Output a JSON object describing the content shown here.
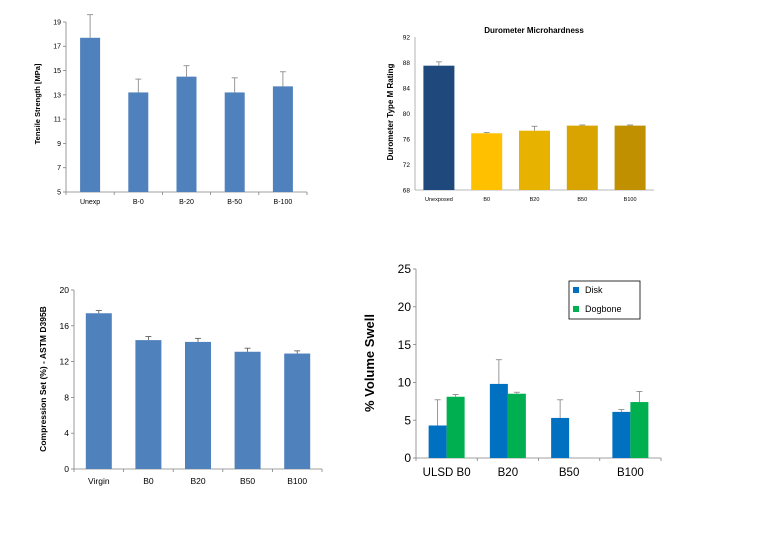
{
  "chart_data": [
    {
      "type": "bar",
      "title": "",
      "ylabel": "Tensile Strength [MPa]",
      "xlabel": "",
      "ylim": [
        5,
        19
      ],
      "yticks": [
        5,
        7,
        9,
        11,
        13,
        15,
        17,
        19
      ],
      "categories": [
        "Unexp",
        "B-0",
        "B-20",
        "B-50",
        "B-100"
      ],
      "values": [
        17.7,
        13.2,
        14.5,
        13.2,
        13.7
      ],
      "errors": [
        1.9,
        1.1,
        0.9,
        1.2,
        1.2
      ],
      "color": "#4f81bd",
      "grid": false,
      "legend": "none"
    },
    {
      "type": "bar",
      "title": "Durometer Microhardness",
      "ylabel": "Durometer Type M Rating",
      "xlabel": "",
      "ylim": [
        68,
        92
      ],
      "yticks": [
        68,
        72,
        76,
        80,
        84,
        88,
        92
      ],
      "categories": [
        "Unexposed",
        "B0",
        "B20",
        "B50",
        "B100"
      ],
      "values": [
        87.5,
        76.9,
        77.3,
        78.1,
        78.1
      ],
      "errors": [
        0.6,
        0.1,
        0.7,
        0.1,
        0.1
      ],
      "colors": [
        "#1f497d",
        "#ffc000",
        "#e8b300",
        "#d9a400",
        "#c09000"
      ],
      "grid": false,
      "legend": "none"
    },
    {
      "type": "bar",
      "title": "",
      "ylabel": "Compression Set (%) - ASTM D395B",
      "xlabel": "",
      "ylim": [
        0,
        20
      ],
      "yticks": [
        0,
        4,
        8,
        12,
        16,
        20
      ],
      "categories": [
        "Virgin",
        "B0",
        "B20",
        "B50",
        "B100"
      ],
      "values": [
        17.4,
        14.4,
        14.2,
        13.1,
        12.9
      ],
      "errors": [
        0.3,
        0.4,
        0.4,
        0.4,
        0.3
      ],
      "color": "#4f81bd",
      "grid": false,
      "legend": "none"
    },
    {
      "type": "bar",
      "title": "",
      "ylabel": "% Volume Swell",
      "xlabel": "",
      "ylim": [
        0,
        25
      ],
      "yticks": [
        0,
        5,
        10,
        15,
        20,
        25
      ],
      "categories": [
        "ULSD B0",
        "B20",
        "B50",
        "B100"
      ],
      "series": [
        {
          "name": "Disk",
          "values": [
            4.3,
            9.8,
            5.3,
            6.1
          ],
          "errors": [
            3.4,
            3.2,
            2.4,
            0.3
          ],
          "color": "#0070c0"
        },
        {
          "name": "Dogbone",
          "values": [
            8.1,
            8.5,
            null,
            7.4
          ],
          "errors": [
            0.3,
            0.2,
            null,
            1.4
          ],
          "color": "#00b050"
        }
      ],
      "grid": false,
      "legend": "top-right"
    }
  ]
}
